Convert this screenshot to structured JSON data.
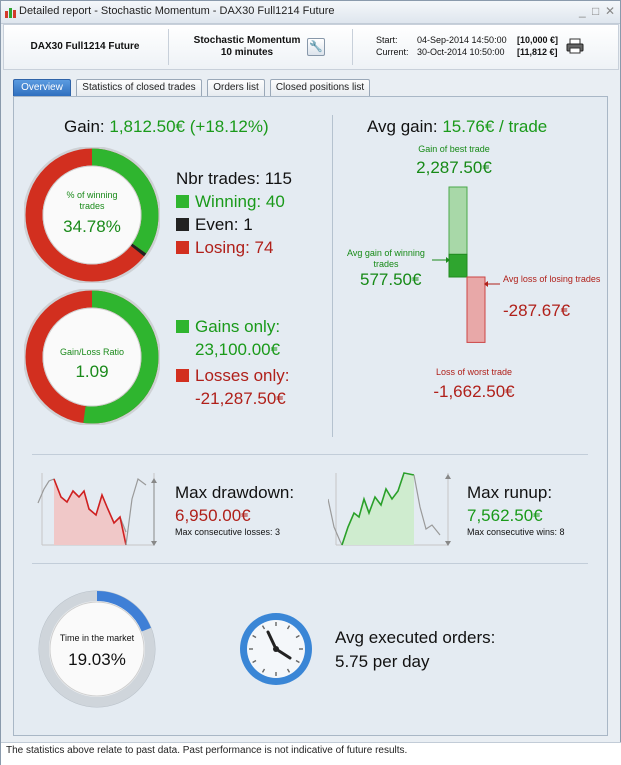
{
  "window": {
    "title": "Detailed report - Stochastic Momentum - DAX30  Full1214 Future",
    "controls": [
      "_",
      "□",
      "✕"
    ]
  },
  "header": {
    "instrument": "DAX30  Full1214 Future",
    "strategy_name": "Stochastic Momentum",
    "strategy_period": "10 minutes",
    "start_label": "Start:",
    "start_value": "04-Sep-2014 14:50:00",
    "start_capital": "[10,000 €]",
    "current_label": "Current:",
    "current_value": "30-Oct-2014 10:50:00",
    "current_capital": "[11,812 €]"
  },
  "tabs": [
    "Overview",
    "Statistics of closed trades",
    "Orders list",
    "Closed positions list"
  ],
  "gain": {
    "label": "Gain:",
    "value": "1,812.50€ (+18.12%)",
    "win_ring_label": "% of winning trades",
    "win_pct": "34.78%",
    "win_fraction": 0.3478,
    "even_fraction": 0.0087,
    "nbr_trades": "Nbr trades: 115",
    "winning": "Winning: 40",
    "even": "Even: 1",
    "losing": "Losing: 74",
    "ratio_label": "Gain/Loss Ratio",
    "ratio_value": "1.09",
    "gains_fraction": 0.5204,
    "gains_only_label": "Gains only:",
    "gains_only_value": "23,100.00€",
    "losses_only_label": "Losses only:",
    "losses_only_value": "-21,287.50€"
  },
  "avg": {
    "label": "Avg gain:",
    "value": "15.76€ / trade",
    "best_label": "Gain of best trade",
    "best_value": "2,287.50€",
    "avg_win_label": "Avg gain of winning trades",
    "avg_win_value": "577.50€",
    "avg_loss_label": "Avg loss of losing trades",
    "avg_loss_value": "-287.67€",
    "worst_label": "Loss of worst trade",
    "worst_value": "-1,662.50€",
    "best_num": 2287.5,
    "avg_win_num": 577.5,
    "avg_loss_num": -287.67,
    "worst_num": -1662.5
  },
  "drawdown": {
    "title": "Max drawdown:",
    "value": "6,950.00€",
    "sub": "Max consecutive losses: 3"
  },
  "runup": {
    "title": "Max runup:",
    "value": "7,562.50€",
    "sub": "Max consecutive wins: 8"
  },
  "market": {
    "label": "Time in the market",
    "value": "19.03%",
    "fraction": 0.1903
  },
  "orders": {
    "label": "Avg executed orders:",
    "value": "5.75 per day"
  },
  "footer": {
    "disclaimer": "The statistics above relate to past data. Past performance is not indicative of future results."
  },
  "colors": {
    "green": "#2fb52f",
    "red": "#d22f1f",
    "dark": "#222222",
    "blue": "#3f7fd6"
  }
}
